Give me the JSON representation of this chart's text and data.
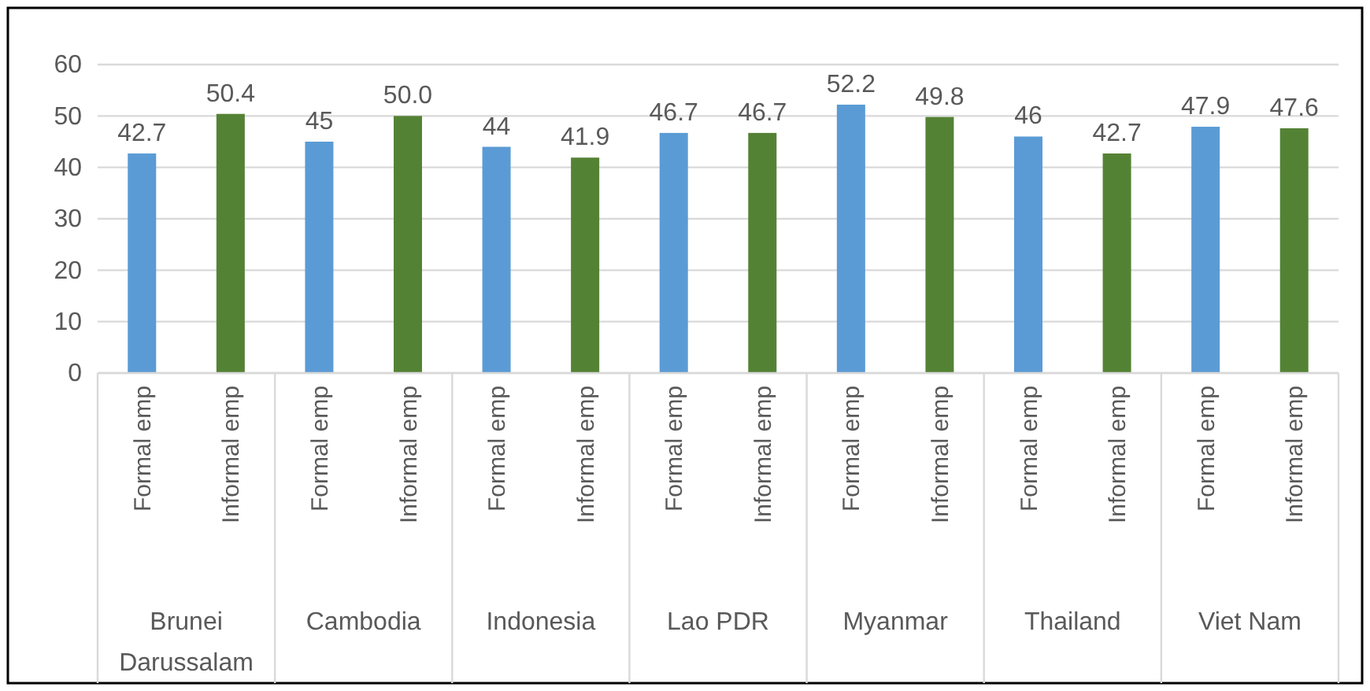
{
  "chart_data": {
    "type": "bar",
    "categories": [
      "Formal emp",
      "Informal emp",
      "Formal emp",
      "Informal emp",
      "Formal emp",
      "Informal emp",
      "Formal emp",
      "Informal emp",
      "Formal emp",
      "Informal emp",
      "Formal emp",
      "Informal emp",
      "Formal emp",
      "Informal emp"
    ],
    "values": [
      42.7,
      50.4,
      45,
      50.0,
      44,
      41.9,
      46.7,
      46.7,
      52.2,
      49.8,
      46,
      42.7,
      47.9,
      47.6
    ],
    "colors": [
      "#5b9bd5",
      "#548235",
      "#5b9bd5",
      "#548235",
      "#5b9bd5",
      "#548235",
      "#5b9bd5",
      "#548235",
      "#5b9bd5",
      "#548235",
      "#5b9bd5",
      "#548235",
      "#5b9bd5",
      "#548235"
    ],
    "value_labels": [
      "42.7",
      "50.4",
      "45",
      "50.0",
      "44",
      "41.9",
      "46.7",
      "46.7",
      "52.2",
      "49.8",
      "46",
      "42.7",
      "47.9",
      "47.6"
    ],
    "annotations": [
      "Brunei Darussalam",
      "Cambodia",
      "Indonesia",
      "Lao PDR",
      "Myanmar",
      "Thailand",
      "Viet Nam"
    ],
    "ylim": [
      0,
      60
    ],
    "yticks": [
      0,
      10,
      20,
      30,
      40,
      50,
      60
    ],
    "grid": "y"
  }
}
